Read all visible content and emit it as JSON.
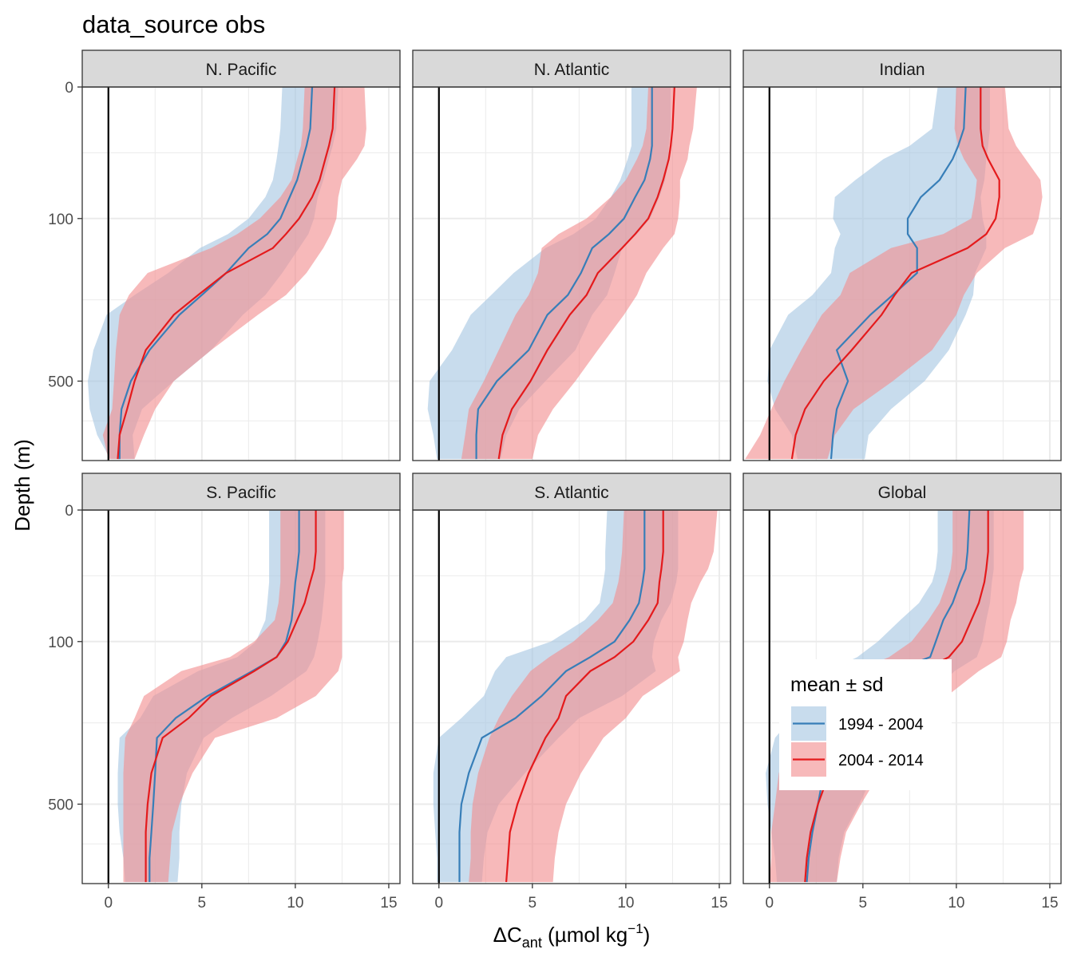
{
  "chart_data": {
    "type": "line",
    "title": "data_source obs",
    "xlabel": {
      "main": "ΔC",
      "sub": "ant",
      "unit_pre": " (µmol kg",
      "sup": "−1",
      "unit_post": ")"
    },
    "ylabel": "Depth (m)",
    "x_ticks": [
      0,
      5,
      10,
      15
    ],
    "y_ticks": [
      0,
      100,
      500
    ],
    "xlim": [
      -1.4,
      15.6
    ],
    "ylim_sqrt_depth": [
      0,
      28.4
    ],
    "y_scale": "sqrt, reversed",
    "grid": true,
    "vline_x": 0,
    "legend": {
      "title": "mean ± sd",
      "position": "inside bottom-right",
      "entries": [
        {
          "label": "1994 - 2004",
          "color": "#377eb8",
          "fill": "#a6c6e2"
        },
        {
          "label": "2004 - 2014",
          "color": "#e41a1c",
          "fill": "#f28e90"
        }
      ]
    },
    "depth": [
      0,
      10,
      20,
      30,
      50,
      70,
      100,
      125,
      150,
      200,
      250,
      300,
      400,
      500,
      600,
      700,
      800
    ],
    "panels": [
      {
        "name": "N. Pacific",
        "series": [
          {
            "name": "1994 - 2004",
            "mean": [
              10.9,
              10.8,
              10.6,
              10.4,
              10.1,
              9.7,
              9.2,
              8.5,
              7.5,
              6.3,
              5.0,
              3.8,
              2.2,
              1.2,
              0.7,
              0.6,
              0.6
            ],
            "lower": [
              9.3,
              9.2,
              9.1,
              9.0,
              8.8,
              8.4,
              7.5,
              6.4,
              4.9,
              3.2,
              1.4,
              -0.1,
              -0.8,
              -1.1,
              -1.0,
              -0.6,
              0.1
            ],
            "upper": [
              12.3,
              12.2,
              12.0,
              11.8,
              11.5,
              11.2,
              11.0,
              10.7,
              10.2,
              9.3,
              8.4,
              7.2,
              5.5,
              3.5,
              1.8,
              1.3,
              1.4
            ]
          },
          {
            "name": "2004 - 2014",
            "mean": [
              12.1,
              12.0,
              11.8,
              11.6,
              11.3,
              10.9,
              10.2,
              9.5,
              8.8,
              6.3,
              4.8,
              3.5,
              2.0,
              1.4,
              1.0,
              0.6,
              0.5
            ],
            "lower": [
              10.5,
              10.4,
              10.3,
              10.1,
              9.8,
              9.2,
              8.1,
              6.9,
              5.5,
              2.1,
              1.1,
              0.6,
              0.4,
              0.3,
              0.2,
              -0.3,
              0.0
            ],
            "upper": [
              13.7,
              13.8,
              13.7,
              13.3,
              12.5,
              12.3,
              12.2,
              11.9,
              11.5,
              10.6,
              9.5,
              8.0,
              5.5,
              3.5,
              2.5,
              1.9,
              1.4
            ]
          }
        ]
      },
      {
        "name": "N. Atlantic",
        "series": [
          {
            "name": "1994 - 2004",
            "mean": [
              11.4,
              11.4,
              11.4,
              11.3,
              11.0,
              10.5,
              9.9,
              9.1,
              8.2,
              7.6,
              6.9,
              5.8,
              4.8,
              3.1,
              2.1,
              2.0,
              2.0
            ],
            "lower": [
              10.3,
              10.3,
              10.3,
              10.1,
              9.7,
              9.2,
              8.4,
              7.2,
              5.7,
              4.0,
              2.8,
              1.7,
              0.7,
              -0.5,
              -0.6,
              -0.3,
              -0.1
            ],
            "upper": [
              12.4,
              12.4,
              12.3,
              12.3,
              12.1,
              11.8,
              11.3,
              10.6,
              9.8,
              9.4,
              9.0,
              8.2,
              7.3,
              5.7,
              4.3,
              3.6,
              3.3
            ]
          },
          {
            "name": "2004 - 2014",
            "mean": [
              12.6,
              12.5,
              12.4,
              12.3,
              12.0,
              11.7,
              11.2,
              10.5,
              9.8,
              8.5,
              7.9,
              7.0,
              5.8,
              4.9,
              3.9,
              3.4,
              3.2
            ],
            "lower": [
              11.2,
              11.1,
              10.9,
              10.6,
              10.0,
              9.2,
              7.9,
              6.4,
              5.5,
              5.3,
              4.8,
              4.1,
              3.2,
              2.4,
              1.6,
              1.4,
              1.2
            ],
            "upper": [
              13.8,
              13.6,
              13.4,
              13.3,
              12.9,
              12.9,
              12.8,
              12.6,
              12.0,
              11.1,
              10.6,
              9.9,
              8.5,
              7.3,
              6.1,
              5.3,
              5.0
            ]
          }
        ]
      },
      {
        "name": "Indian",
        "series": [
          {
            "name": "1994 - 2004",
            "mean": [
              10.5,
              10.4,
              10.1,
              9.8,
              9.1,
              8.1,
              7.4,
              7.4,
              7.9,
              7.9,
              6.6,
              5.4,
              3.6,
              4.2,
              3.6,
              3.4,
              3.3
            ],
            "lower": [
              9.0,
              8.7,
              7.5,
              6.1,
              4.6,
              3.5,
              3.4,
              3.8,
              3.5,
              3.3,
              2.3,
              1.0,
              0.0,
              -0.1,
              0.3,
              1.2,
              1.5
            ],
            "upper": [
              11.8,
              11.8,
              11.7,
              11.6,
              11.5,
              11.3,
              11.4,
              11.6,
              11.6,
              11.0,
              10.9,
              10.5,
              9.6,
              8.3,
              6.5,
              5.3,
              5.1
            ]
          },
          {
            "name": "2004 - 2014",
            "mean": [
              11.3,
              11.3,
              11.4,
              11.7,
              12.3,
              12.3,
              12.1,
              11.6,
              10.6,
              7.6,
              6.7,
              6.0,
              4.4,
              2.9,
              1.9,
              1.4,
              1.2
            ],
            "lower": [
              10.0,
              9.9,
              10.1,
              10.4,
              11.1,
              11.0,
              10.8,
              9.3,
              6.5,
              4.3,
              3.8,
              2.8,
              1.7,
              0.8,
              0.1,
              -0.5,
              -1.3
            ],
            "upper": [
              12.6,
              12.8,
              13.2,
              13.7,
              14.5,
              14.6,
              14.4,
              14.1,
              12.6,
              11.1,
              10.4,
              10.0,
              8.7,
              6.6,
              4.5,
              3.5,
              3.1
            ]
          }
        ]
      },
      {
        "name": "S. Pacific",
        "series": [
          {
            "name": "1994 - 2004",
            "mean": [
              10.2,
              10.2,
              10.1,
              10.0,
              9.9,
              9.8,
              9.5,
              9.0,
              7.7,
              5.3,
              3.6,
              2.6,
              2.5,
              2.4,
              2.3,
              2.2,
              2.2
            ],
            "lower": [
              8.6,
              8.6,
              8.6,
              8.6,
              8.5,
              8.4,
              7.9,
              6.9,
              4.8,
              2.4,
              1.7,
              0.6,
              0.5,
              0.5,
              0.6,
              0.8,
              0.9
            ],
            "upper": [
              11.6,
              11.6,
              11.6,
              11.6,
              11.5,
              11.4,
              11.2,
              11.0,
              10.6,
              8.7,
              6.6,
              5.1,
              4.2,
              3.9,
              3.8,
              3.8,
              3.7
            ]
          },
          {
            "name": "2004 - 2014",
            "mean": [
              11.1,
              11.1,
              11.0,
              10.8,
              10.5,
              10.1,
              9.6,
              9.0,
              7.8,
              5.5,
              4.3,
              2.9,
              2.3,
              2.1,
              2.0,
              2.0,
              2.0
            ],
            "lower": [
              9.2,
              9.2,
              9.2,
              9.2,
              9.1,
              8.9,
              7.8,
              6.5,
              3.9,
              1.9,
              1.4,
              0.9,
              0.8,
              0.8,
              0.8,
              0.8,
              0.8
            ],
            "upper": [
              12.6,
              12.6,
              12.6,
              12.5,
              12.5,
              12.5,
              12.5,
              12.5,
              12.3,
              11.1,
              9.0,
              5.7,
              4.5,
              3.8,
              3.4,
              3.3,
              3.2
            ]
          }
        ]
      },
      {
        "name": "S. Atlantic",
        "series": [
          {
            "name": "1994 - 2004",
            "mean": [
              11.0,
              11.0,
              11.0,
              10.9,
              10.7,
              10.2,
              9.4,
              8.1,
              6.8,
              5.5,
              4.1,
              2.3,
              1.6,
              1.2,
              1.1,
              1.1,
              1.1
            ],
            "lower": [
              9.0,
              8.9,
              8.9,
              8.8,
              8.6,
              7.8,
              6.0,
              3.6,
              3.0,
              2.4,
              1.2,
              0.0,
              -0.3,
              -0.3,
              -0.2,
              -0.1,
              -0.1
            ],
            "upper": [
              12.8,
              12.8,
              12.8,
              12.7,
              12.4,
              11.9,
              11.5,
              11.4,
              11.6,
              9.8,
              7.5,
              6.4,
              4.6,
              3.2,
              2.6,
              2.4,
              2.3
            ]
          },
          {
            "name": "2004 - 2014",
            "mean": [
              12.0,
              12.0,
              11.9,
              11.8,
              11.7,
              11.2,
              10.4,
              9.4,
              8.1,
              6.8,
              6.4,
              5.7,
              4.8,
              4.2,
              3.8,
              3.7,
              3.6
            ],
            "lower": [
              9.9,
              9.8,
              9.7,
              9.6,
              9.3,
              8.5,
              7.2,
              5.9,
              4.9,
              3.9,
              3.2,
              2.7,
              2.1,
              1.8,
              1.7,
              1.7,
              1.6
            ],
            "upper": [
              14.9,
              14.7,
              14.4,
              14.0,
              13.5,
              13.3,
              13.1,
              12.8,
              12.9,
              10.9,
              10.0,
              8.8,
              7.6,
              6.8,
              6.4,
              6.2,
              6.1
            ]
          }
        ]
      },
      {
        "name": "Global",
        "series": [
          {
            "name": "1994 - 2004",
            "mean": [
              10.7,
              10.6,
              10.5,
              10.2,
              9.8,
              9.3,
              8.9,
              8.6,
              6.6,
              5.5,
              4.5,
              3.4,
              2.9,
              2.6,
              2.3,
              2.1,
              2.0
            ],
            "lower": [
              9.0,
              9.0,
              8.9,
              8.7,
              8.0,
              7.0,
              5.8,
              4.7,
              3.1,
              2.1,
              1.2,
              0.3,
              -0.2,
              -0.1,
              0.1,
              0.3,
              0.4
            ],
            "upper": [
              12.0,
              12.0,
              12.0,
              11.9,
              11.8,
              11.6,
              11.4,
              11.1,
              9.9,
              8.6,
              7.6,
              6.7,
              5.6,
              4.8,
              4.0,
              3.7,
              3.6
            ]
          },
          {
            "name": "2004 - 2014",
            "mean": [
              11.7,
              11.7,
              11.6,
              11.5,
              11.2,
              10.8,
              10.3,
              9.6,
              8.1,
              6.4,
              5.3,
              4.1,
              3.2,
              2.6,
              2.2,
              2.0,
              1.9
            ],
            "lower": [
              9.8,
              9.8,
              9.7,
              9.5,
              9.1,
              8.5,
              7.6,
              6.4,
              4.6,
              3.0,
              2.1,
              1.2,
              0.5,
              0.3,
              0.1,
              0.1,
              0.0
            ],
            "upper": [
              13.6,
              13.6,
              13.6,
              13.4,
              13.2,
              12.9,
              12.7,
              12.4,
              11.2,
              9.5,
              8.4,
              7.2,
              5.9,
              4.9,
              4.1,
              3.8,
              3.6
            ]
          }
        ]
      }
    ]
  }
}
